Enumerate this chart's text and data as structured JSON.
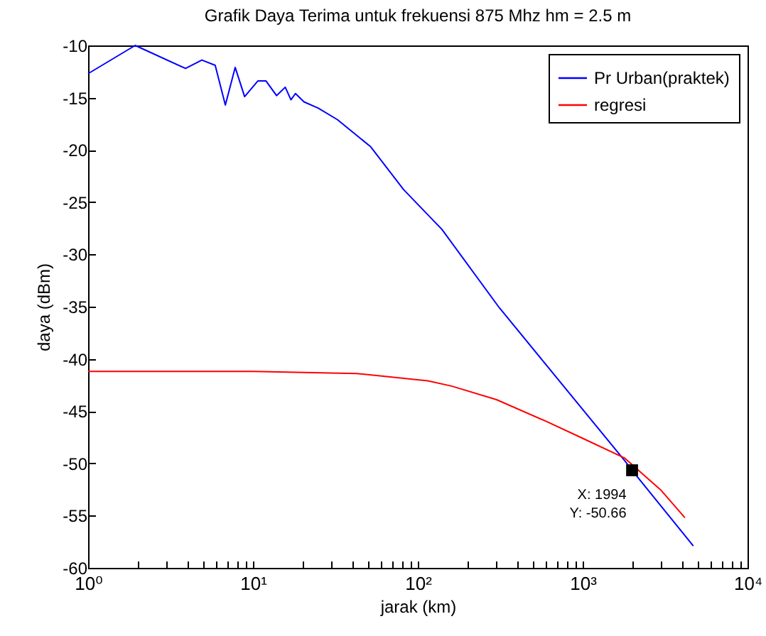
{
  "chart_data": {
    "type": "line",
    "title": "Grafik Daya Terima untuk frekuensi 875 Mhz hm = 2.5 m",
    "xlabel": "jarak (km)",
    "ylabel": "daya (dBm)",
    "log": "x",
    "xlim": [
      1,
      10000
    ],
    "xticks": [
      {
        "value": 1,
        "label": "10⁰"
      },
      {
        "value": 2,
        "label": null
      },
      {
        "value": 3,
        "label": null
      },
      {
        "value": 4,
        "label": null
      },
      {
        "value": 5,
        "label": null
      },
      {
        "value": 6,
        "label": null
      },
      {
        "value": 7,
        "label": null
      },
      {
        "value": 8,
        "label": null
      },
      {
        "value": 9,
        "label": null
      },
      {
        "value": 10,
        "label": "10¹"
      },
      {
        "value": 20,
        "label": null
      },
      {
        "value": 30,
        "label": null
      },
      {
        "value": 40,
        "label": null
      },
      {
        "value": 50,
        "label": null
      },
      {
        "value": 60,
        "label": null
      },
      {
        "value": 70,
        "label": null
      },
      {
        "value": 80,
        "label": null
      },
      {
        "value": 90,
        "label": null
      },
      {
        "value": 100,
        "label": "10²"
      },
      {
        "value": 200,
        "label": null
      },
      {
        "value": 300,
        "label": null
      },
      {
        "value": 400,
        "label": null
      },
      {
        "value": 500,
        "label": null
      },
      {
        "value": 600,
        "label": null
      },
      {
        "value": 700,
        "label": null
      },
      {
        "value": 800,
        "label": null
      },
      {
        "value": 900,
        "label": null
      },
      {
        "value": 1000,
        "label": "10³"
      },
      {
        "value": 2000,
        "label": null
      },
      {
        "value": 3000,
        "label": null
      },
      {
        "value": 4000,
        "label": null
      },
      {
        "value": 5000,
        "label": null
      },
      {
        "value": 6000,
        "label": null
      },
      {
        "value": 7000,
        "label": null
      },
      {
        "value": 8000,
        "label": null
      },
      {
        "value": 9000,
        "label": null
      },
      {
        "value": 10000,
        "label": "10⁴"
      }
    ],
    "ylim": [
      -60,
      -10
    ],
    "yticks": [
      -60,
      -55,
      -50,
      -45,
      -40,
      -35,
      -30,
      -25,
      -20,
      -15,
      -10
    ],
    "legend": "top right",
    "series": [
      {
        "name": "Pr Urban(praktek)",
        "color": "#0000ff",
        "x": [
          1,
          1.93,
          3.9,
          4.9,
          5.9,
          6.8,
          7.8,
          8.9,
          10.7,
          12,
          13.9,
          15.7,
          17,
          18.1,
          20.4,
          24.9,
          32.5,
          51.8,
          82,
          140,
          312,
          1811,
          1994,
          4690
        ],
        "values": [
          -12.7,
          -10,
          -12.2,
          -11.4,
          -11.9,
          -15.7,
          -12.1,
          -14.9,
          -13.4,
          -13.4,
          -14.8,
          -14,
          -15.2,
          -14.6,
          -15.4,
          -16,
          -17.1,
          -19.7,
          -23.8,
          -27.6,
          -35.1,
          -49.8,
          -50.66,
          -57.9
        ]
      },
      {
        "name": "regresi",
        "color": "#ff0000",
        "x": [
          1,
          10,
          42.5,
          115,
          160,
          300,
          605,
          1000,
          1800,
          3000,
          4170
        ],
        "values": [
          -41.2,
          -41.2,
          -41.4,
          -42.1,
          -42.6,
          -43.9,
          -46,
          -47.6,
          -49.5,
          -52.6,
          -55.2
        ]
      }
    ],
    "annotations": [
      {
        "text": "X: 1994\nY: -50.66",
        "x": 1994,
        "y": -50.66
      }
    ]
  }
}
